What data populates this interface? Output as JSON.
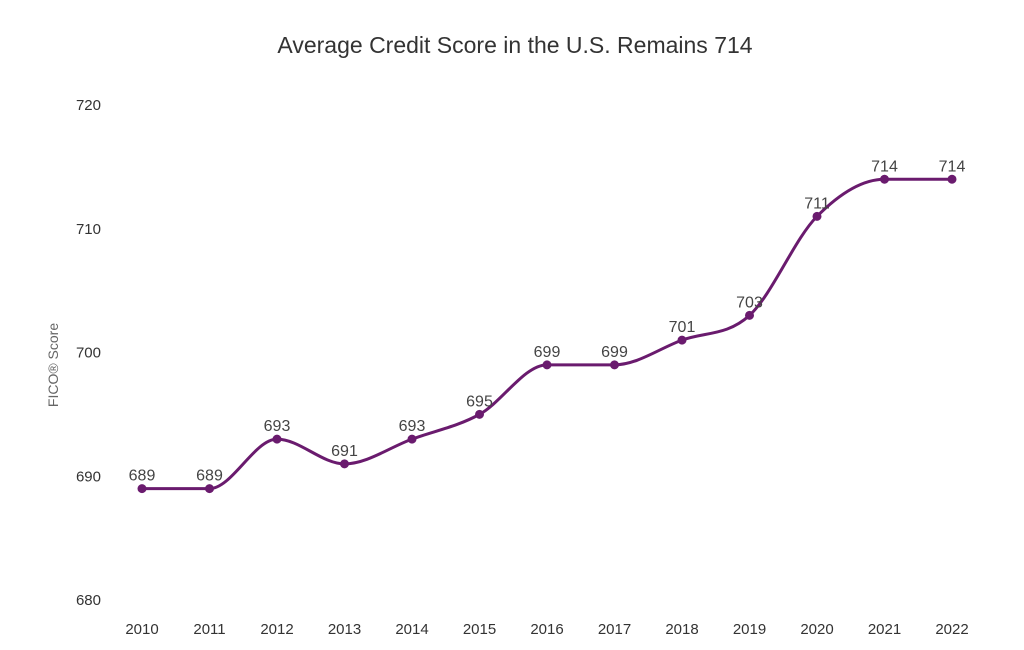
{
  "chart_data": {
    "type": "line",
    "title": "Average Credit Score in the U.S. Remains 714",
    "xlabel": "",
    "ylabel": "FICO® Score",
    "categories": [
      "2010",
      "2011",
      "2012",
      "2013",
      "2014",
      "2015",
      "2016",
      "2017",
      "2018",
      "2019",
      "2020",
      "2021",
      "2022"
    ],
    "series": [
      {
        "values": [
          689,
          689,
          693,
          691,
          693,
          695,
          699,
          699,
          701,
          703,
          711,
          714,
          714
        ]
      }
    ],
    "ylim": [
      680,
      720
    ],
    "yticks": [
      680,
      690,
      700,
      710,
      720
    ],
    "grid": false,
    "line_color": "#6a1b6e"
  }
}
